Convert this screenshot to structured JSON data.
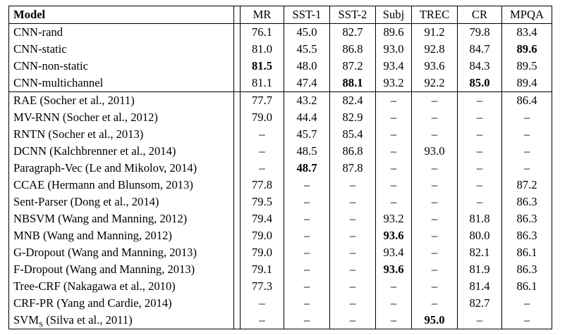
{
  "table": {
    "headers": [
      "Model",
      "MR",
      "SST-1",
      "SST-2",
      "Subj",
      "TREC",
      "CR",
      "MPQA"
    ],
    "rows": [
      {
        "model": "CNN-rand",
        "values": [
          "76.1",
          "45.0",
          "82.7",
          "89.6",
          "91.2",
          "79.8",
          "83.4"
        ],
        "bold": []
      },
      {
        "model": "CNN-static",
        "values": [
          "81.0",
          "45.5",
          "86.8",
          "93.0",
          "92.8",
          "84.7",
          "89.6"
        ],
        "bold": [
          6
        ]
      },
      {
        "model": "CNN-non-static",
        "values": [
          "81.5",
          "48.0",
          "87.2",
          "93.4",
          "93.6",
          "84.3",
          "89.5"
        ],
        "bold": [
          0
        ]
      },
      {
        "model": "CNN-multichannel",
        "values": [
          "81.1",
          "47.4",
          "88.1",
          "93.2",
          "92.2",
          "85.0",
          "89.4"
        ],
        "bold": [
          2,
          5
        ]
      },
      {
        "model": "RAE (Socher et al., 2011)",
        "values": [
          "77.7",
          "43.2",
          "82.4",
          "–",
          "–",
          "–",
          "86.4"
        ],
        "bold": []
      },
      {
        "model": "MV-RNN (Socher et al., 2012)",
        "values": [
          "79.0",
          "44.4",
          "82.9",
          "–",
          "–",
          "–",
          "–"
        ],
        "bold": []
      },
      {
        "model": "RNTN (Socher et al., 2013)",
        "values": [
          "–",
          "45.7",
          "85.4",
          "–",
          "–",
          "–",
          "–"
        ],
        "bold": []
      },
      {
        "model": "DCNN (Kalchbrenner et al., 2014)",
        "values": [
          "–",
          "48.5",
          "86.8",
          "–",
          "93.0",
          "–",
          "–"
        ],
        "bold": []
      },
      {
        "model": "Paragraph-Vec (Le and Mikolov, 2014)",
        "values": [
          "–",
          "48.7",
          "87.8",
          "–",
          "–",
          "–",
          "–"
        ],
        "bold": [
          1
        ]
      },
      {
        "model": "CCAE (Hermann and Blunsom, 2013)",
        "values": [
          "77.8",
          "–",
          "–",
          "–",
          "–",
          "–",
          "87.2"
        ],
        "bold": []
      },
      {
        "model": "Sent-Parser (Dong et al., 2014)",
        "values": [
          "79.5",
          "–",
          "–",
          "–",
          "–",
          "–",
          "86.3"
        ],
        "bold": []
      },
      {
        "model": "NBSVM (Wang and Manning, 2012)",
        "values": [
          "79.4",
          "–",
          "–",
          "93.2",
          "–",
          "81.8",
          "86.3"
        ],
        "bold": []
      },
      {
        "model": "MNB (Wang and Manning, 2012)",
        "values": [
          "79.0",
          "–",
          "–",
          "93.6",
          "–",
          "80.0",
          "86.3"
        ],
        "bold": [
          3
        ]
      },
      {
        "model": "G-Dropout (Wang and Manning, 2013)",
        "values": [
          "79.0",
          "–",
          "–",
          "93.4",
          "–",
          "82.1",
          "86.1"
        ],
        "bold": []
      },
      {
        "model": "F-Dropout (Wang and Manning, 2013)",
        "values": [
          "79.1",
          "–",
          "–",
          "93.6",
          "–",
          "81.9",
          "86.3"
        ],
        "bold": [
          3
        ]
      },
      {
        "model": "Tree-CRF (Nakagawa et al., 2010)",
        "values": [
          "77.3",
          "–",
          "–",
          "–",
          "–",
          "81.4",
          "86.1"
        ],
        "bold": []
      },
      {
        "model": "CRF-PR (Yang and Cardie, 2014)",
        "values": [
          "–",
          "–",
          "–",
          "–",
          "–",
          "82.7",
          "–"
        ],
        "bold": []
      },
      {
        "model_prefix": "SVM",
        "model_sub": "S",
        "model_suffix": " (Silva et al., 2011)",
        "values": [
          "–",
          "–",
          "–",
          "–",
          "95.0",
          "–",
          "–"
        ],
        "bold": [
          4
        ]
      }
    ]
  }
}
